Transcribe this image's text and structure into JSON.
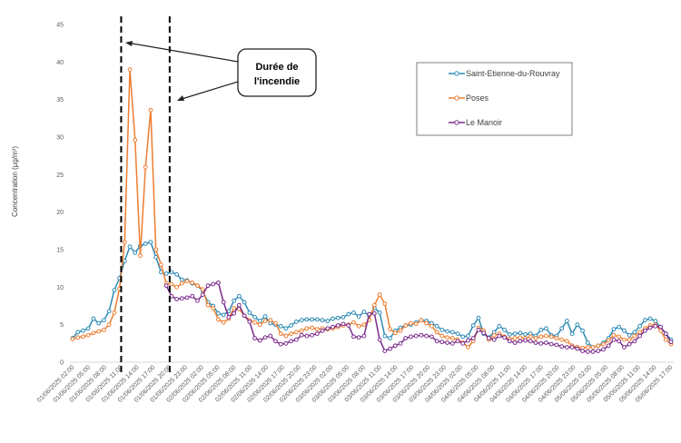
{
  "chart_data": {
    "type": "line",
    "ylabel": "Concentration (µg/m³)",
    "ylim": [
      0,
      45
    ],
    "yticks": [
      0,
      5,
      10,
      15,
      20,
      25,
      30,
      35,
      40,
      45
    ],
    "grid": false,
    "legend_position": "top-right",
    "x_labels": [
      "01/06/2025 02:00",
      "01/06/2025 05:00",
      "01/06/2025 08:00",
      "01/06/2025 11:00",
      "01/06/2025 14:00",
      "01/06/2025 17:00",
      "01/06/2025 20:00",
      "01/06/2025 23:00",
      "02/06/2025 02:00",
      "02/06/2025 05:00",
      "02/06/2025 08:00",
      "02/06/2025 11:00",
      "02/06/2025 14:00",
      "02/06/2025 17:00",
      "02/06/2025 20:00",
      "02/06/2025 23:00",
      "03/06/2025 02:00",
      "03/06/2025 05:00",
      "03/06/2025 08:00",
      "03/06/2025 11:00",
      "03/06/2025 14:00",
      "03/06/2025 17:00",
      "03/06/2025 20:00",
      "03/06/2025 23:00",
      "04/06/2025 02:00",
      "04/06/2025 05:00",
      "04/06/2025 08:00",
      "04/06/2025 11:00",
      "04/06/2025 14:00",
      "04/06/2025 17:00",
      "04/06/2025 20:00",
      "04/06/2025 23:00",
      "05/06/2025 02:00",
      "05/06/2025 05:00",
      "05/06/2025 08:00",
      "05/06/2025 11:00",
      "05/06/2025 14:00",
      "05/06/2025 17:00"
    ],
    "series": [
      {
        "name": "Saint-Etienne-du-Rouvray",
        "color": "#2e8bb5",
        "values": [
          3.2,
          4.0,
          4.2,
          4.5,
          5.8,
          5.2,
          5.6,
          6.8,
          9.6,
          11.2,
          13.5,
          15.4,
          14.6,
          15.5,
          15.8,
          16.0,
          14.0,
          12.0,
          11.8,
          12.0,
          11.7,
          11.0,
          10.9,
          10.5,
          10.2,
          9.5,
          8.0,
          7.5,
          6.5,
          6.3,
          6.8,
          8.2,
          8.8,
          8.0,
          6.6,
          6.0,
          5.5,
          6.1,
          5.2,
          5.0,
          4.8,
          4.5,
          4.9,
          5.4,
          5.6,
          5.7,
          5.7,
          5.7,
          5.6,
          5.5,
          5.8,
          5.9,
          6.0,
          6.4,
          6.6,
          6.1,
          6.7,
          6.2,
          7.2,
          6.6,
          3.5,
          3.2,
          4.2,
          4.6,
          4.9,
          5.0,
          5.3,
          5.6,
          5.5,
          5.2,
          4.8,
          4.3,
          4.1,
          4.0,
          3.8,
          3.4,
          3.5,
          4.9,
          5.9,
          3.8,
          3.3,
          4.0,
          4.8,
          4.3,
          3.7,
          3.8,
          3.9,
          3.7,
          3.8,
          3.5,
          4.3,
          4.5,
          3.6,
          3.5,
          4.5,
          5.5,
          3.8,
          5.0,
          4.2,
          2.6,
          2.0,
          2.2,
          2.6,
          3.2,
          4.4,
          4.7,
          4.2,
          3.6,
          4.0,
          4.8,
          5.6,
          5.8,
          5.5,
          4.6,
          3.8,
          3.0
        ]
      },
      {
        "name": "Poses",
        "color": "#ed7d31",
        "values": [
          3.1,
          3.3,
          3.4,
          3.6,
          3.9,
          4.1,
          4.3,
          5.0,
          6.6,
          9.8,
          16.0,
          39.0,
          29.6,
          14.2,
          26.0,
          33.6,
          15.0,
          13.0,
          10.5,
          10.4,
          10.0,
          10.5,
          10.8,
          10.6,
          10.2,
          9.7,
          7.6,
          7.2,
          5.7,
          5.3,
          5.8,
          7.2,
          7.1,
          6.2,
          5.6,
          5.3,
          5.0,
          5.5,
          5.6,
          5.2,
          3.8,
          3.5,
          3.8,
          4.0,
          4.2,
          4.5,
          4.6,
          4.4,
          4.5,
          4.4,
          4.5,
          4.7,
          4.9,
          5.0,
          5.3,
          4.8,
          5.0,
          5.6,
          7.6,
          9.0,
          7.8,
          4.4,
          3.9,
          4.2,
          4.9,
          5.2,
          5.1,
          5.6,
          5.2,
          4.8,
          4.0,
          3.5,
          3.3,
          3.2,
          3.0,
          2.6,
          2.0,
          2.8,
          4.6,
          4.2,
          3.0,
          3.6,
          3.8,
          3.4,
          3.1,
          3.2,
          3.3,
          3.2,
          3.4,
          3.2,
          3.4,
          3.5,
          3.4,
          3.2,
          3.0,
          2.8,
          2.2,
          2.0,
          1.9,
          2.0,
          2.0,
          2.2,
          2.4,
          2.9,
          3.6,
          3.4,
          3.0,
          3.0,
          3.5,
          4.0,
          4.5,
          4.9,
          5.0,
          4.2,
          3.0,
          2.4
        ]
      },
      {
        "name": "Le Manoir",
        "color": "#7b2b8c",
        "values": [
          null,
          null,
          null,
          null,
          null,
          null,
          null,
          null,
          null,
          null,
          null,
          null,
          null,
          null,
          null,
          null,
          null,
          null,
          10.2,
          8.8,
          8.4,
          8.5,
          8.6,
          8.8,
          8.2,
          9.0,
          10.2,
          10.4,
          10.6,
          8.0,
          6.0,
          6.5,
          7.6,
          6.2,
          5.4,
          3.2,
          2.9,
          3.3,
          3.5,
          2.8,
          2.4,
          2.5,
          2.8,
          3.0,
          3.6,
          3.5,
          3.6,
          3.8,
          4.2,
          4.5,
          4.7,
          4.9,
          5.1,
          4.9,
          3.4,
          3.3,
          3.5,
          6.4,
          6.5,
          3.0,
          1.5,
          1.8,
          2.2,
          2.5,
          3.2,
          3.4,
          3.5,
          3.6,
          3.5,
          3.4,
          2.8,
          2.7,
          2.6,
          2.5,
          2.8,
          2.5,
          2.9,
          3.2,
          4.3,
          3.9,
          3.2,
          3.0,
          3.5,
          3.3,
          2.8,
          2.6,
          2.8,
          2.9,
          2.8,
          2.6,
          2.5,
          2.6,
          2.4,
          2.3,
          2.1,
          2.0,
          2.0,
          1.8,
          1.5,
          1.4,
          1.4,
          1.5,
          1.7,
          2.2,
          3.0,
          2.8,
          2.0,
          2.4,
          2.8,
          3.5,
          4.2,
          4.6,
          4.8,
          4.7,
          3.8,
          2.7
        ]
      }
    ],
    "annotation": {
      "lines": [
        "Durée de",
        "l'incendie"
      ],
      "start_x_label": "01/06/2025 11:00",
      "end_x_label": "01/06/2025 20:00"
    }
  }
}
